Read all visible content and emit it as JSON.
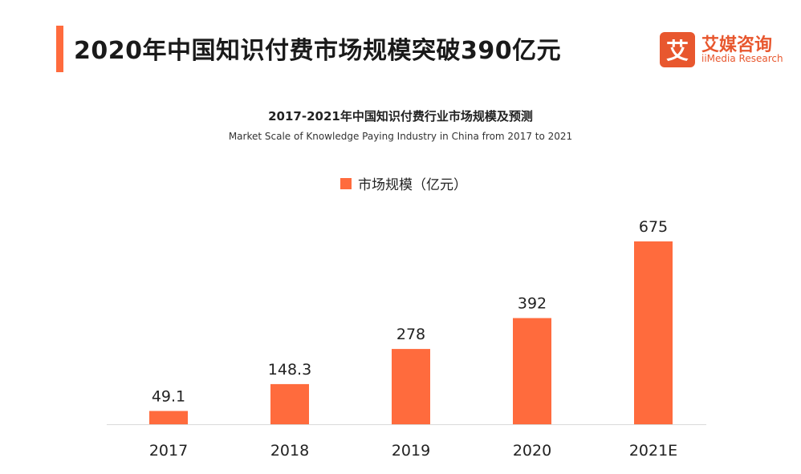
{
  "header": {
    "title": "2020年中国知识付费市场规模突破390亿元",
    "accent_color": "#FF6B3D"
  },
  "logo": {
    "mark": "艾",
    "name_cn": "艾媒咨询",
    "name_en": "iiMedia Research",
    "color": "#E8572E"
  },
  "chart_data": {
    "type": "bar",
    "title": "2017-2021年中国知识付费行业市场规模及预测",
    "subtitle": "Market Scale of Knowledge Paying  Industry  in China from 2017 to 2021",
    "categories": [
      "2017",
      "2018",
      "2019",
      "2020",
      "2021E"
    ],
    "series": [
      {
        "name": "市场规模（亿元）",
        "values": [
          49.1,
          148.3,
          278,
          392,
          675
        ],
        "color": "#FF6B3D"
      }
    ],
    "value_labels": [
      "49.1",
      "148.3",
      "278",
      "392",
      "675"
    ],
    "ylim": [
      0,
      700
    ],
    "grid": false,
    "legend_position": "top-center"
  }
}
